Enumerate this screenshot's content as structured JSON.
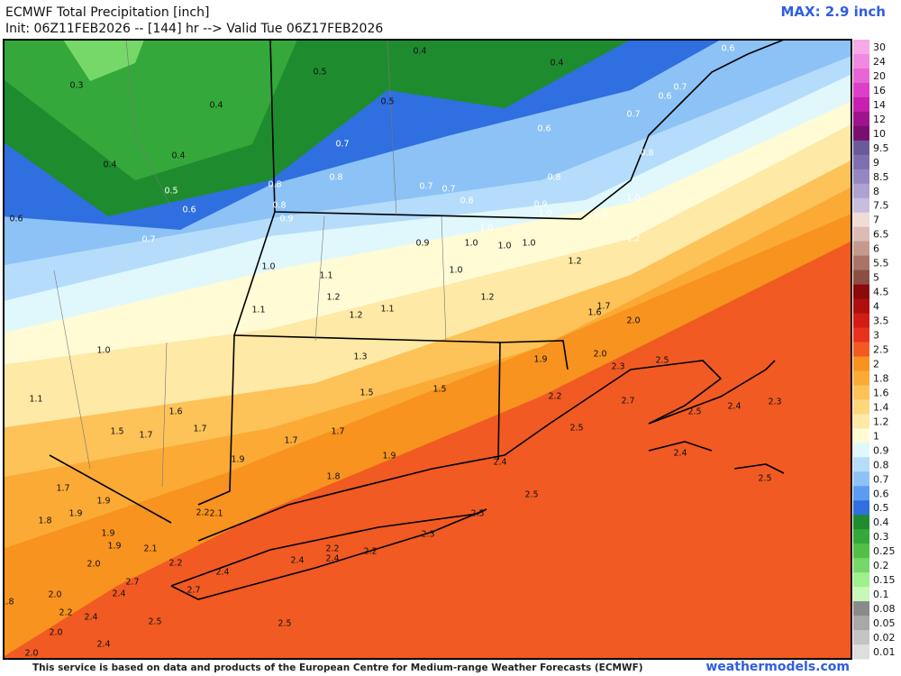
{
  "header": {
    "title": "ECMWF Total Precipitation [inch]",
    "subtitle": "Init: 06Z11FEB2026 -- [144] hr --> Valid Tue 06Z17FEB2026",
    "max": "MAX: 2.9 inch"
  },
  "footer": {
    "note": "This service is based on data and products of the European Centre for Medium-range Weather Forecasts (ECMWF)",
    "site": "weathermodels.com"
  },
  "legend": {
    "labels": [
      "30",
      "24",
      "20",
      "16",
      "14",
      "12",
      "10",
      "9.5",
      "9",
      "8.5",
      "8",
      "7.5",
      "7",
      "6.5",
      "6",
      "5.5",
      "5",
      "4.5",
      "4",
      "3.5",
      "3",
      "2.5",
      "2",
      "1.8",
      "1.6",
      "1.4",
      "1.2",
      "1",
      "0.9",
      "0.8",
      "0.7",
      "0.6",
      "0.5",
      "0.4",
      "0.3",
      "0.25",
      "0.2",
      "0.15",
      "0.1",
      "0.08",
      "0.05",
      "0.02",
      "0.01"
    ],
    "colors": [
      "#f7a8e8",
      "#f08ae0",
      "#e865d6",
      "#de3fc8",
      "#c81fb0",
      "#a0138e",
      "#7a0f72",
      "#6b5a9a",
      "#7d6fb0",
      "#9487c2",
      "#ada2d2",
      "#c6bde0",
      "#f0dcd6",
      "#dcbcb2",
      "#c49a8e",
      "#a87467",
      "#8a4f42",
      "#8c0a0a",
      "#b00f0f",
      "#d21c14",
      "#e8321e",
      "#f25a22",
      "#f7931e",
      "#fbaa35",
      "#fdc258",
      "#fed67c",
      "#fee9a6",
      "#fffbd5",
      "#e0f8fb",
      "#b5dcfb",
      "#8cc2f5",
      "#5a9df0",
      "#2f6fe0",
      "#1e8c2e",
      "#34a83a",
      "#52c047",
      "#76d868",
      "#9ef08e",
      "#c6f8b8",
      "#8a8a8a",
      "#a8a8a8",
      "#c4c4c4",
      "#dedede"
    ]
  },
  "map": {
    "labels": [
      "0.3",
      "0.4",
      "0.4",
      "0.4",
      "0.5",
      "0.6",
      "0.6",
      "0.7",
      "0.5",
      "0.5",
      "0.4",
      "0.4",
      "0.6",
      "0.6",
      "0.7",
      "0.7",
      "0.6",
      "0.7",
      "0.8",
      "0.8",
      "0.8",
      "0.9",
      "0.7",
      "0.7",
      "0.8",
      "0.8",
      "0.9",
      "1.0",
      "0.8",
      "1.0",
      "1.0",
      "1.0",
      "0.9",
      "1.0",
      "1.0",
      "1.0",
      "1.2",
      "1.2",
      "1.0",
      "1.1",
      "1.0",
      "1.2",
      "1.2",
      "1.1",
      "1.2",
      "1.1",
      "1.7",
      "1.6",
      "2.0",
      "1.0",
      "1.3",
      "1.9",
      "2.0",
      "2.3",
      "2.5",
      "1.1",
      "1.5",
      "1.5",
      "2.2",
      "2.7",
      "2.5",
      "2.4",
      "2.3",
      "1.6",
      "1.7",
      "1.5",
      "1.7",
      "1.7",
      "1.7",
      "1.9",
      "1.9",
      "2.5",
      "2.4",
      "2.5",
      "1.8",
      "2.4",
      "1.7",
      "1.9",
      "1.9",
      "1.8",
      "1.9",
      "1.9",
      "2.2",
      "2.1",
      "2.5",
      "2.5",
      "2.1",
      "2.0",
      "2.2",
      "2.2",
      "2.2",
      "2.3",
      "2.4",
      "2.4",
      "2.4",
      "2.7",
      "2.4",
      "2.0",
      "1.8",
      "2.7",
      "2.2",
      "2.4",
      "2.5",
      "2.5",
      "2.0",
      "2.4",
      "2.0"
    ]
  }
}
